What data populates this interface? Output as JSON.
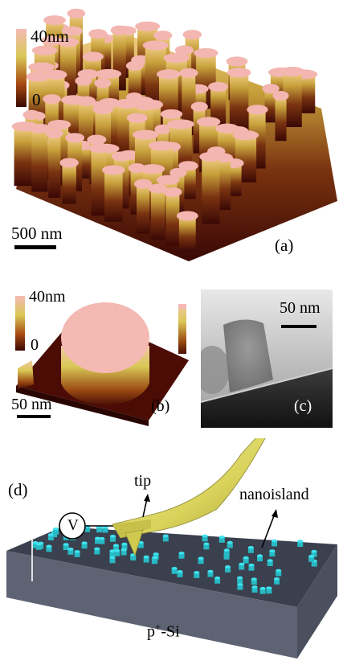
{
  "panel_a": {
    "label": "(a)",
    "colorbar_max": "40nm",
    "colorbar_min": "0",
    "scalebar": "500 nm"
  },
  "panel_b": {
    "label": "(b)",
    "colorbar_max": "40nm",
    "colorbar_min": "0",
    "scalebar": "50 nm"
  },
  "panel_c": {
    "label": "(c)",
    "scalebar": "50 nm"
  },
  "panel_d": {
    "label": "(d)",
    "tip_label": "tip",
    "nanoisland_label": "nanoisland",
    "voltmeter_symbol": "V",
    "substrate_label": "p",
    "substrate_sup": "+",
    "substrate_suffix": "-Si"
  },
  "colors": {
    "afm_top": "#f3b6b1",
    "afm_mid": "#c8a23c",
    "afm_dark": "#4a0f06",
    "cantilever": "#e6e27a",
    "nanoisland": "#3fe3ee",
    "substrate": "#3a3f4d"
  }
}
